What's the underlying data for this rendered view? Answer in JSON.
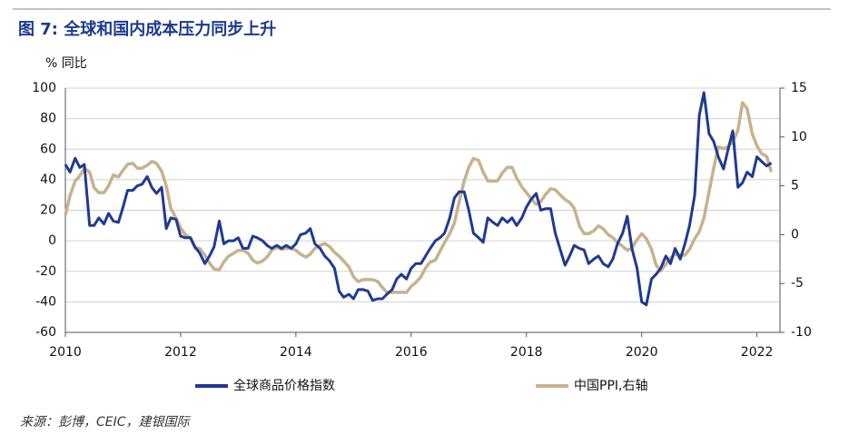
{
  "chart_data": {
    "type": "line",
    "title": "图 7: 全球和国内成本压力同步上升",
    "y_label": "% 同比",
    "source": "来源：彭博，CEIC，建银国际",
    "x": [
      2010,
      2010.08,
      2010.17,
      2010.25,
      2010.33,
      2010.42,
      2010.5,
      2010.58,
      2010.67,
      2010.75,
      2010.83,
      2010.92,
      2011,
      2011.08,
      2011.17,
      2011.25,
      2011.33,
      2011.42,
      2011.5,
      2011.58,
      2011.67,
      2011.75,
      2011.83,
      2011.92,
      2012,
      2012.08,
      2012.17,
      2012.25,
      2012.33,
      2012.42,
      2012.5,
      2012.58,
      2012.67,
      2012.75,
      2012.83,
      2012.92,
      2013,
      2013.08,
      2013.17,
      2013.25,
      2013.33,
      2013.42,
      2013.5,
      2013.58,
      2013.67,
      2013.75,
      2013.83,
      2013.92,
      2014,
      2014.08,
      2014.17,
      2014.25,
      2014.33,
      2014.42,
      2014.5,
      2014.58,
      2014.67,
      2014.75,
      2014.83,
      2014.92,
      2015,
      2015.08,
      2015.17,
      2015.25,
      2015.33,
      2015.42,
      2015.5,
      2015.58,
      2015.67,
      2015.75,
      2015.83,
      2015.92,
      2016,
      2016.08,
      2016.17,
      2016.25,
      2016.33,
      2016.42,
      2016.5,
      2016.58,
      2016.67,
      2016.75,
      2016.83,
      2016.92,
      2017,
      2017.08,
      2017.17,
      2017.25,
      2017.33,
      2017.42,
      2017.5,
      2017.58,
      2017.67,
      2017.75,
      2017.83,
      2017.92,
      2018,
      2018.08,
      2018.17,
      2018.25,
      2018.33,
      2018.42,
      2018.5,
      2018.58,
      2018.67,
      2018.75,
      2018.83,
      2018.92,
      2019,
      2019.08,
      2019.17,
      2019.25,
      2019.33,
      2019.42,
      2019.5,
      2019.58,
      2019.67,
      2019.75,
      2019.83,
      2019.92,
      2020,
      2020.08,
      2020.17,
      2020.25,
      2020.33,
      2020.42,
      2020.5,
      2020.58,
      2020.67,
      2020.75,
      2020.83,
      2020.92,
      2021,
      2021.08,
      2021.17,
      2021.25,
      2021.33,
      2021.42,
      2021.5,
      2021.58,
      2021.67,
      2021.75,
      2021.83,
      2021.92,
      2022,
      2022.08,
      2022.17,
      2022.25
    ],
    "series": [
      {
        "name": "全球商品价格指数",
        "color": "#1f3a93",
        "axis": "y",
        "values": [
          50,
          45,
          54,
          48,
          50,
          10,
          10,
          15,
          11,
          18,
          13,
          12,
          22,
          33,
          33,
          36,
          37,
          42,
          35,
          31,
          35,
          8,
          15,
          14,
          3,
          2,
          2,
          -4,
          -8,
          -15,
          -10,
          -4,
          13,
          -2,
          0,
          0,
          2,
          -5,
          -5,
          3,
          2,
          0,
          -3,
          -5,
          -3,
          -5,
          -3,
          -5,
          -2,
          4,
          5,
          8,
          -2,
          -5,
          -10,
          -13,
          -18,
          -33,
          -37,
          -35,
          -38,
          -32,
          -32,
          -33,
          -39,
          -38,
          -38,
          -35,
          -32,
          -25,
          -22,
          -25,
          -18,
          -15,
          -15,
          -10,
          -5,
          0,
          2,
          5,
          15,
          28,
          32,
          32,
          20,
          5,
          2,
          -1,
          15,
          12,
          10,
          15,
          12,
          15,
          10,
          15,
          22,
          27,
          31,
          20,
          21,
          21,
          5,
          -5,
          -16,
          -10,
          -3,
          -5,
          -6,
          -15,
          -12,
          -10,
          -15,
          -17,
          -12,
          -2,
          5,
          16,
          -5,
          -18,
          -40,
          -42,
          -25,
          -22,
          -18,
          -10,
          -15,
          -5,
          -12,
          -2,
          10,
          30,
          82,
          97,
          70,
          65,
          55,
          47,
          60,
          72,
          35,
          38,
          45,
          42,
          55,
          52,
          49,
          51
        ]
      },
      {
        "name": "中国PPI,右轴",
        "color": "#c8b18e",
        "axis": "y2",
        "values": [
          2.0,
          4.0,
          5.5,
          6.0,
          6.8,
          6.4,
          4.8,
          4.3,
          4.3,
          5.0,
          6.1,
          5.9,
          6.6,
          7.2,
          7.3,
          6.8,
          6.8,
          7.1,
          7.5,
          7.3,
          6.5,
          5.0,
          2.7,
          1.7,
          0.7,
          0.0,
          -0.3,
          -1.4,
          -1.4,
          -2.1,
          -2.9,
          -3.5,
          -3.6,
          -2.8,
          -2.2,
          -1.9,
          -1.6,
          -1.6,
          -1.9,
          -2.6,
          -2.9,
          -2.7,
          -2.3,
          -1.6,
          -1.3,
          -1.5,
          -1.4,
          -1.4,
          -1.6,
          -2.0,
          -2.3,
          -2.0,
          -1.4,
          -1.1,
          -0.9,
          -1.2,
          -1.8,
          -2.2,
          -2.7,
          -3.3,
          -4.3,
          -4.8,
          -4.6,
          -4.6,
          -4.6,
          -4.8,
          -5.4,
          -5.9,
          -5.9,
          -5.9,
          -5.9,
          -5.9,
          -5.3,
          -4.9,
          -4.3,
          -3.4,
          -2.8,
          -2.6,
          -1.7,
          -0.8,
          0.1,
          1.2,
          3.3,
          5.5,
          6.9,
          7.8,
          7.6,
          6.4,
          5.5,
          5.5,
          5.5,
          6.3,
          6.9,
          6.9,
          5.8,
          4.9,
          4.3,
          3.7,
          3.1,
          3.4,
          4.1,
          4.7,
          4.6,
          4.1,
          3.6,
          3.3,
          2.7,
          0.9,
          0.1,
          0.1,
          0.4,
          0.9,
          0.6,
          0.0,
          -0.3,
          -0.8,
          -1.2,
          -1.6,
          -1.4,
          -0.5,
          0.1,
          -0.4,
          -1.5,
          -3.1,
          -3.7,
          -3.0,
          -2.4,
          -2.0,
          -2.1,
          -2.1,
          -1.5,
          -0.4,
          0.3,
          1.7,
          4.4,
          6.8,
          9.0,
          8.8,
          9.0,
          9.5,
          10.7,
          13.5,
          12.9,
          10.3,
          9.1,
          8.3,
          8.0,
          6.4
        ]
      }
    ],
    "xlim": [
      2010,
      2022.4
    ],
    "xticks": [
      2010,
      2012,
      2014,
      2016,
      2018,
      2020,
      2022
    ],
    "ylim": [
      -60,
      100
    ],
    "yticks": [
      -60,
      -40,
      -20,
      0,
      20,
      40,
      60,
      80,
      100
    ],
    "y2lim": [
      -10,
      15
    ],
    "y2ticks": [
      -10,
      -5,
      0,
      5,
      10,
      15
    ],
    "grid": true,
    "legend": "bottom"
  }
}
